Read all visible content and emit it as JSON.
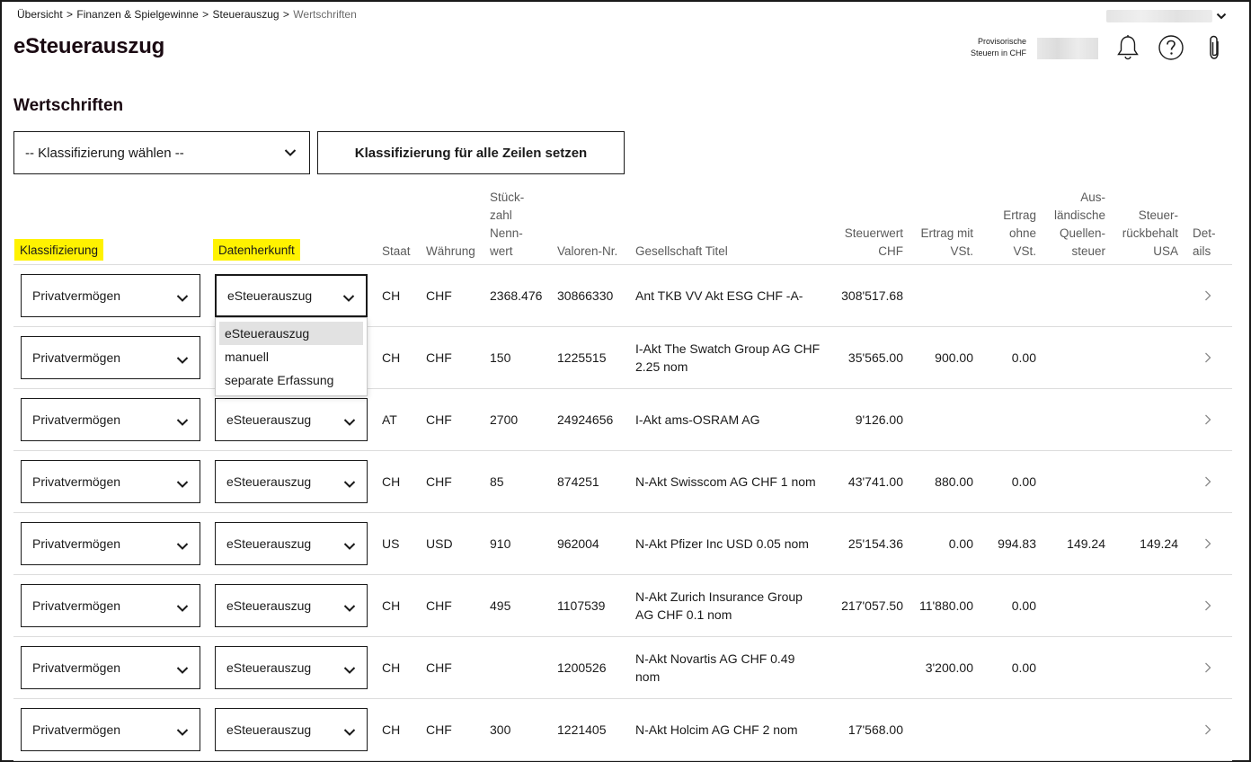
{
  "breadcrumb": {
    "items": [
      "Übersicht",
      "Finanzen & Spielgewinne",
      "Steuerauszug"
    ],
    "separator": ">",
    "current": "Wertschriften"
  },
  "header": {
    "title": "eSteuerauszug",
    "provisional_label_line1": "Provisorische",
    "provisional_label_line2": "Steuern in CHF",
    "icons": [
      "bell-icon",
      "help-icon",
      "paperclip-icon"
    ]
  },
  "section": {
    "title": "Wertschriften",
    "classification_placeholder": "-- Klassifizierung wählen --",
    "set_all_button": "Klassifizierung für alle Zeilen setzen"
  },
  "colors": {
    "highlight": "#fff200",
    "text": "#1a1a1a",
    "divider": "#dcdcdc"
  },
  "table": {
    "headers": {
      "klassifizierung": "Klassifizierung",
      "datenherkunft": "Datenherkunft",
      "staat": "Staat",
      "waehrung": "Währung",
      "stueckzahl": [
        "Stück-",
        "zahl",
        "Nenn-",
        "wert"
      ],
      "valoren": "Valoren-Nr.",
      "gesellschaft": "Gesellschaft Titel",
      "steuerwert": [
        "Steuerwert",
        "CHF"
      ],
      "ertrag_mit": [
        "Ertrag mit",
        "VSt."
      ],
      "ertrag_ohne": [
        "Ertrag",
        "ohne",
        "VSt."
      ],
      "quellensteuer": [
        "Aus-",
        "ländische",
        "Quellen-",
        "steuer"
      ],
      "rueckbehalt": [
        "Steuer-",
        "rückbehalt",
        "USA"
      ],
      "details": [
        "Det-",
        "ails"
      ]
    },
    "rows": [
      {
        "klassifizierung": "Privatvermögen",
        "datenherkunft": "eSteuerauszug",
        "staat": "CH",
        "waehrung": "CHF",
        "stueckzahl": "2368.476",
        "valoren": "30866330",
        "titel1": "Ant TKB VV Akt ESG CHF -A-",
        "titel2": "",
        "steuerwert": "308'517.68",
        "ertrag_mit": "",
        "ertrag_ohne": "",
        "quellensteuer": "",
        "rueckbehalt": ""
      },
      {
        "klassifizierung": "Privatvermögen",
        "datenherkunft": "eSteuerauszug",
        "staat": "CH",
        "waehrung": "CHF",
        "stueckzahl": "150",
        "valoren": "1225515",
        "titel1": "I-Akt The Swatch Group AG CHF",
        "titel2": "2.25 nom",
        "steuerwert": "35'565.00",
        "ertrag_mit": "900.00",
        "ertrag_ohne": "0.00",
        "quellensteuer": "",
        "rueckbehalt": ""
      },
      {
        "klassifizierung": "Privatvermögen",
        "datenherkunft": "eSteuerauszug",
        "staat": "AT",
        "waehrung": "CHF",
        "stueckzahl": "2700",
        "valoren": "24924656",
        "titel1": "I-Akt ams-OSRAM AG",
        "titel2": "",
        "steuerwert": "9'126.00",
        "ertrag_mit": "",
        "ertrag_ohne": "",
        "quellensteuer": "",
        "rueckbehalt": ""
      },
      {
        "klassifizierung": "Privatvermögen",
        "datenherkunft": "eSteuerauszug",
        "staat": "CH",
        "waehrung": "CHF",
        "stueckzahl": "85",
        "valoren": "874251",
        "titel1": "N-Akt Swisscom AG CHF 1 nom",
        "titel2": "",
        "steuerwert": "43'741.00",
        "ertrag_mit": "880.00",
        "ertrag_ohne": "0.00",
        "quellensteuer": "",
        "rueckbehalt": ""
      },
      {
        "klassifizierung": "Privatvermögen",
        "datenherkunft": "eSteuerauszug",
        "staat": "US",
        "waehrung": "USD",
        "stueckzahl": "910",
        "valoren": "962004",
        "titel1": "N-Akt Pfizer Inc USD 0.05 nom",
        "titel2": "",
        "steuerwert": "25'154.36",
        "ertrag_mit": "0.00",
        "ertrag_ohne": "994.83",
        "quellensteuer": "149.24",
        "rueckbehalt": "149.24"
      },
      {
        "klassifizierung": "Privatvermögen",
        "datenherkunft": "eSteuerauszug",
        "staat": "CH",
        "waehrung": "CHF",
        "stueckzahl": "495",
        "valoren": "1107539",
        "titel1": "N-Akt Zurich Insurance Group",
        "titel2": "AG CHF 0.1 nom",
        "steuerwert": "217'057.50",
        "ertrag_mit": "11'880.00",
        "ertrag_ohne": "0.00",
        "quellensteuer": "",
        "rueckbehalt": ""
      },
      {
        "klassifizierung": "Privatvermögen",
        "datenherkunft": "eSteuerauszug",
        "staat": "CH",
        "waehrung": "CHF",
        "stueckzahl": "",
        "valoren": "1200526",
        "titel1": "N-Akt Novartis AG CHF 0.49",
        "titel2": "nom",
        "steuerwert": "",
        "ertrag_mit": "3'200.00",
        "ertrag_ohne": "0.00",
        "quellensteuer": "",
        "rueckbehalt": ""
      },
      {
        "klassifizierung": "Privatvermögen",
        "datenherkunft": "eSteuerauszug",
        "staat": "CH",
        "waehrung": "CHF",
        "stueckzahl": "300",
        "valoren": "1221405",
        "titel1": "N-Akt Holcim AG CHF 2 nom",
        "titel2": "",
        "steuerwert": "17'568.00",
        "ertrag_mit": "",
        "ertrag_ohne": "",
        "quellensteuer": "",
        "rueckbehalt": ""
      }
    ]
  },
  "datenherkunft_dropdown": {
    "open_row": 0,
    "options": [
      "eSteuerauszug",
      "manuell",
      "separate Erfassung"
    ],
    "highlighted": 0
  }
}
